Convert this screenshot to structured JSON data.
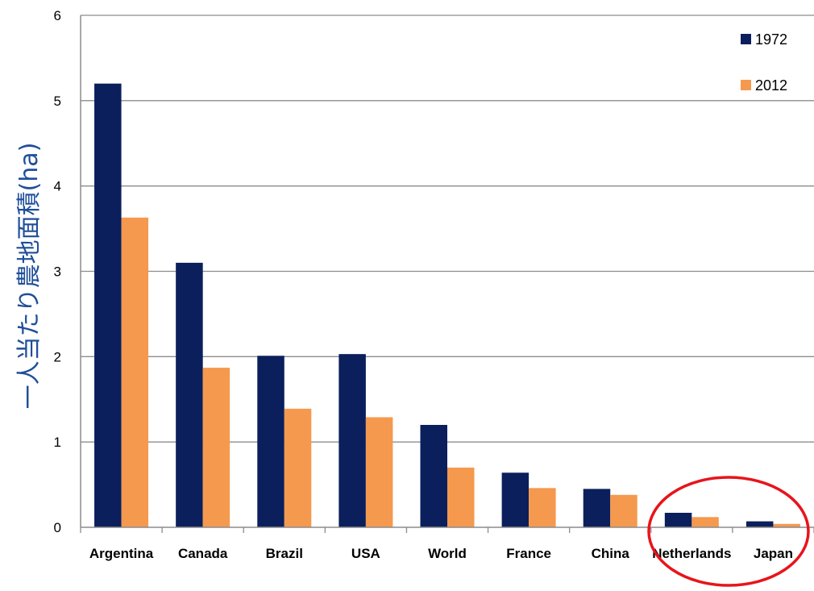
{
  "chart_data": {
    "type": "bar",
    "title": "",
    "xlabel": "",
    "ylabel": "一人当たり農地面積(ha)",
    "categories": [
      "Argentina",
      "Canada",
      "Brazil",
      "USA",
      "World",
      "France",
      "China",
      "Netherlands",
      "Japan"
    ],
    "series": [
      {
        "name": "1972",
        "color": "#0a1f5c",
        "values": [
          5.2,
          3.1,
          2.01,
          2.03,
          1.2,
          0.64,
          0.45,
          0.17,
          0.07
        ]
      },
      {
        "name": "2012",
        "color": "#f5994e",
        "values": [
          3.63,
          1.87,
          1.39,
          1.29,
          0.7,
          0.46,
          0.38,
          0.12,
          0.04
        ]
      }
    ],
    "ylim": [
      0,
      6
    ],
    "yticks": [
      0,
      1,
      2,
      3,
      4,
      5,
      6
    ],
    "grid": true,
    "legend_position": "top-right",
    "highlight": {
      "categories": [
        "Netherlands",
        "Japan"
      ],
      "shape": "ellipse",
      "color": "#e8141b"
    }
  }
}
